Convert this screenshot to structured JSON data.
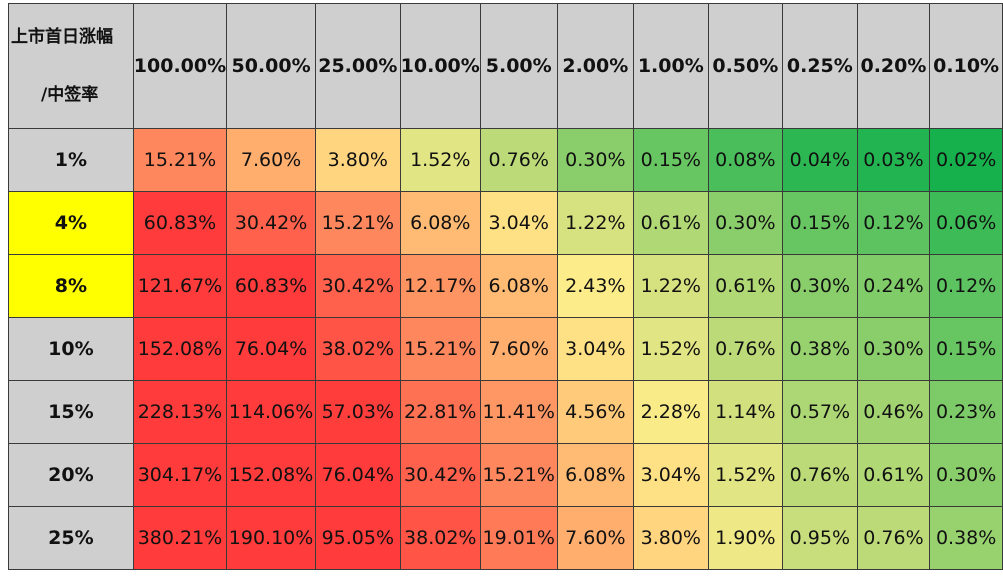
{
  "chart_data": {
    "type": "heatmap",
    "corner_label_line1": "上市首日涨幅",
    "corner_label_line2": "/中签率",
    "columns": [
      "100.00%",
      "50.00%",
      "25.00%",
      "10.00%",
      "5.00%",
      "2.00%",
      "1.00%",
      "0.50%",
      "0.25%",
      "0.20%",
      "0.10%"
    ],
    "rows": [
      {
        "label": "1%",
        "highlight": false,
        "values": [
          15.21,
          7.6,
          3.8,
          1.52,
          0.76,
          0.3,
          0.15,
          0.08,
          0.04,
          0.03,
          0.02
        ]
      },
      {
        "label": "4%",
        "highlight": true,
        "values": [
          60.83,
          30.42,
          15.21,
          6.08,
          3.04,
          1.22,
          0.61,
          0.3,
          0.15,
          0.12,
          0.06
        ]
      },
      {
        "label": "8%",
        "highlight": true,
        "values": [
          121.67,
          60.83,
          30.42,
          12.17,
          6.08,
          2.43,
          1.22,
          0.61,
          0.3,
          0.24,
          0.12
        ]
      },
      {
        "label": "10%",
        "highlight": false,
        "values": [
          152.08,
          76.04,
          38.02,
          15.21,
          7.6,
          3.04,
          1.52,
          0.76,
          0.38,
          0.3,
          0.15
        ]
      },
      {
        "label": "15%",
        "highlight": false,
        "values": [
          228.13,
          114.06,
          57.03,
          22.81,
          11.41,
          4.56,
          2.28,
          1.14,
          0.57,
          0.46,
          0.23
        ]
      },
      {
        "label": "20%",
        "highlight": false,
        "values": [
          304.17,
          152.08,
          76.04,
          30.42,
          15.21,
          6.08,
          3.04,
          1.52,
          0.76,
          0.61,
          0.3
        ]
      },
      {
        "label": "25%",
        "highlight": false,
        "values": [
          380.21,
          190.1,
          95.05,
          38.02,
          19.01,
          7.6,
          3.8,
          1.9,
          0.95,
          0.76,
          0.38
        ]
      }
    ],
    "color_scale": {
      "low": "#16b14d",
      "mid": "#ffec8a",
      "high": "#ff3b3b"
    },
    "header_color": "#d0cfd0",
    "highlight_color": "#ffff00"
  }
}
